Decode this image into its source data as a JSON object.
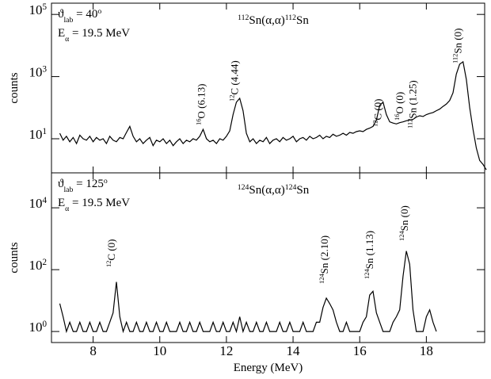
{
  "chart_data": [
    {
      "type": "line",
      "title": [
        {
          "text": "112",
          "pos": "sup"
        },
        {
          "text": "Sn(α,α)"
        },
        {
          "text": "112",
          "pos": "sup"
        },
        {
          "text": "Sn"
        }
      ],
      "title_color": "#2222dd",
      "conditions": [
        [
          {
            "text": "ϑ"
          },
          {
            "text": "lab",
            "pos": "sub"
          },
          {
            "text": " = 40"
          },
          {
            "text": "o",
            "pos": "sup"
          }
        ],
        [
          {
            "text": "E"
          },
          {
            "text": "α",
            "pos": "sub"
          },
          {
            "text": " = 19.5 MeV"
          }
        ]
      ],
      "ylabel": "counts",
      "log_y": true,
      "xlim": [
        6.75,
        19.75
      ],
      "xticks": [
        8,
        10,
        12,
        14,
        16,
        18
      ],
      "ylim": [
        0.8,
        230000
      ],
      "yticks": [
        {
          "value": 10,
          "label": [
            {
              "text": "10"
            },
            {
              "text": "1",
              "pos": "sup"
            }
          ]
        },
        {
          "value": 1000,
          "label": [
            {
              "text": "10"
            },
            {
              "text": "3",
              "pos": "sup"
            }
          ]
        },
        {
          "value": 100000,
          "label": [
            {
              "text": "10"
            },
            {
              "text": "5",
              "pos": "sup"
            }
          ]
        }
      ],
      "annotations": [
        {
          "text": [
            {
              "text": "16",
              "pos": "sup"
            },
            {
              "text": "O (6.13)"
            }
          ],
          "color": "#000000"
        },
        {
          "text": [
            {
              "text": "12",
              "pos": "sup"
            },
            {
              "text": "C (4.44)"
            }
          ],
          "color": "#000000"
        },
        {
          "text": [
            {
              "text": "12",
              "pos": "sup"
            },
            {
              "text": "C (0)"
            }
          ],
          "color": "#000000"
        },
        {
          "text": [
            {
              "text": "16",
              "pos": "sup"
            },
            {
              "text": "O (0)"
            }
          ],
          "color": "#000000"
        },
        {
          "text": [
            {
              "text": "112",
              "pos": "sup"
            },
            {
              "text": "Sn (1.25)"
            }
          ],
          "color": "#000000"
        },
        {
          "text": [
            {
              "text": "112",
              "pos": "sup"
            },
            {
              "text": "Sn (0)"
            }
          ],
          "color": "#2222dd"
        }
      ],
      "x": [
        7.0,
        7.1,
        7.2,
        7.3,
        7.4,
        7.5,
        7.6,
        7.7,
        7.8,
        7.9,
        8.0,
        8.1,
        8.2,
        8.3,
        8.4,
        8.5,
        8.6,
        8.7,
        8.8,
        8.9,
        9.0,
        9.1,
        9.2,
        9.3,
        9.4,
        9.5,
        9.6,
        9.7,
        9.8,
        9.9,
        10.0,
        10.1,
        10.2,
        10.3,
        10.4,
        10.5,
        10.6,
        10.7,
        10.8,
        10.9,
        11.0,
        11.1,
        11.2,
        11.3,
        11.4,
        11.5,
        11.6,
        11.7,
        11.8,
        11.9,
        12.0,
        12.1,
        12.2,
        12.3,
        12.4,
        12.5,
        12.6,
        12.7,
        12.8,
        12.9,
        13.0,
        13.1,
        13.2,
        13.3,
        13.4,
        13.5,
        13.6,
        13.7,
        13.8,
        13.9,
        14.0,
        14.1,
        14.2,
        14.3,
        14.4,
        14.5,
        14.6,
        14.7,
        14.8,
        14.9,
        15.0,
        15.1,
        15.2,
        15.3,
        15.4,
        15.5,
        15.6,
        15.7,
        15.8,
        15.9,
        16.0,
        16.1,
        16.2,
        16.3,
        16.4,
        16.5,
        16.6,
        16.7,
        16.8,
        16.9,
        17.0,
        17.1,
        17.2,
        17.3,
        17.4,
        17.5,
        17.6,
        17.7,
        17.8,
        17.9,
        18.0,
        18.1,
        18.2,
        18.3,
        18.4,
        18.5,
        18.6,
        18.7,
        18.8,
        18.9,
        19.0,
        19.1,
        19.2,
        19.3,
        19.4,
        19.5,
        19.6,
        19.7,
        19.8
      ],
      "series": [
        {
          "color": "#000000",
          "values": [
            15,
            9,
            12,
            8,
            11,
            7,
            13,
            10,
            9,
            12,
            8,
            11,
            9,
            10,
            7,
            12,
            9,
            8,
            11,
            10,
            16,
            25,
            12,
            8,
            10,
            7,
            9,
            11,
            6,
            9,
            8,
            10,
            7,
            9,
            6,
            8,
            10,
            7,
            9,
            8,
            10,
            9,
            12,
            20,
            10,
            8,
            9,
            7,
            10,
            9,
            12,
            18,
            60,
            150,
            200,
            80,
            15,
            8,
            10,
            7,
            9,
            8,
            11,
            7,
            9,
            10,
            8,
            11,
            9,
            10,
            12,
            8,
            10,
            11,
            9,
            12,
            10,
            11,
            13,
            10,
            12,
            11,
            14,
            12,
            13,
            15,
            13,
            16,
            15,
            17,
            18,
            17,
            20,
            22,
            25,
            40,
            120,
            150,
            60,
            35,
            32,
            30,
            33,
            35,
            38,
            40,
            42,
            50,
            55,
            52,
            60,
            65,
            70,
            80,
            90,
            110,
            130,
            170,
            300,
            1200,
            2500,
            3000,
            800,
            100,
            20,
            5,
            2,
            1.5,
            1
          ]
        }
      ]
    },
    {
      "type": "line",
      "title": [
        {
          "text": "124",
          "pos": "sup"
        },
        {
          "text": "Sn(α,α)"
        },
        {
          "text": "124",
          "pos": "sup"
        },
        {
          "text": "Sn"
        }
      ],
      "title_color": "#2222dd",
      "conditions": [
        [
          {
            "text": "ϑ"
          },
          {
            "text": "lab",
            "pos": "sub"
          },
          {
            "text": " = 125"
          },
          {
            "text": "o",
            "pos": "sup"
          }
        ],
        [
          {
            "text": "E"
          },
          {
            "text": "α",
            "pos": "sub"
          },
          {
            "text": " = 19.5 MeV"
          }
        ]
      ],
      "ylabel": "counts",
      "xlabel": "Energy (MeV)",
      "log_y": true,
      "xlim": [
        6.75,
        19.75
      ],
      "xticks": [
        8,
        10,
        12,
        14,
        16,
        18
      ],
      "ylim": [
        0.44,
        135000
      ],
      "yticks": [
        {
          "value": 1,
          "label": [
            {
              "text": "10"
            },
            {
              "text": "0",
              "pos": "sup"
            }
          ]
        },
        {
          "value": 100,
          "label": [
            {
              "text": "10"
            },
            {
              "text": "2",
              "pos": "sup"
            }
          ]
        },
        {
          "value": 10000,
          "label": [
            {
              "text": "10"
            },
            {
              "text": "4",
              "pos": "sup"
            }
          ]
        }
      ],
      "annotations": [
        {
          "text": [
            {
              "text": "12",
              "pos": "sup"
            },
            {
              "text": "C (0)"
            }
          ],
          "color": "#000000"
        },
        {
          "text": [
            {
              "text": "124",
              "pos": "sup"
            },
            {
              "text": "Sn (2.10)"
            }
          ],
          "color": "#000000"
        },
        {
          "text": [
            {
              "text": "124",
              "pos": "sup"
            },
            {
              "text": "Sn (1.13)"
            }
          ],
          "color": "#000000"
        },
        {
          "text": [
            {
              "text": "124",
              "pos": "sup"
            },
            {
              "text": "Sn (0)"
            }
          ],
          "color": "#2222dd"
        }
      ],
      "x": [
        7.0,
        7.1,
        7.2,
        7.3,
        7.4,
        7.5,
        7.6,
        7.7,
        7.8,
        7.9,
        8.0,
        8.1,
        8.2,
        8.3,
        8.4,
        8.5,
        8.6,
        8.7,
        8.8,
        8.9,
        9.0,
        9.1,
        9.2,
        9.3,
        9.4,
        9.5,
        9.6,
        9.7,
        9.8,
        9.9,
        10.0,
        10.1,
        10.2,
        10.3,
        10.4,
        10.5,
        10.6,
        10.7,
        10.8,
        10.9,
        11.0,
        11.1,
        11.2,
        11.3,
        11.4,
        11.5,
        11.6,
        11.7,
        11.8,
        11.9,
        12.0,
        12.1,
        12.2,
        12.3,
        12.4,
        12.5,
        12.6,
        12.7,
        12.8,
        12.9,
        13.0,
        13.1,
        13.2,
        13.3,
        13.4,
        13.5,
        13.6,
        13.7,
        13.8,
        13.9,
        14.0,
        14.1,
        14.2,
        14.3,
        14.4,
        14.5,
        14.6,
        14.7,
        14.8,
        14.9,
        15.0,
        15.1,
        15.2,
        15.3,
        15.4,
        15.5,
        15.6,
        15.7,
        15.8,
        15.9,
        16.0,
        16.1,
        16.2,
        16.3,
        16.4,
        16.5,
        16.6,
        16.7,
        16.8,
        16.9,
        17.0,
        17.1,
        17.2,
        17.3,
        17.4,
        17.5,
        17.6,
        17.7,
        17.8,
        17.9,
        18.0,
        18.1,
        18.2,
        18.3
      ],
      "series": [
        {
          "color": "#000000",
          "values": [
            8,
            3,
            1,
            2,
            1,
            1,
            2,
            1,
            1,
            2,
            1,
            1,
            2,
            1,
            1,
            2,
            4,
            40,
            3,
            1,
            2,
            1,
            1,
            2,
            1,
            1,
            2,
            1,
            1,
            2,
            1,
            1,
            2,
            1,
            1,
            1,
            2,
            1,
            1,
            2,
            1,
            1,
            2,
            1,
            1,
            1,
            2,
            1,
            1,
            2,
            1,
            1,
            2,
            1,
            3,
            1,
            2,
            1,
            1,
            2,
            1,
            1,
            2,
            1,
            1,
            1,
            2,
            1,
            1,
            2,
            1,
            1,
            1,
            2,
            1,
            1,
            1,
            2,
            2,
            6,
            12,
            8,
            5,
            2,
            1,
            1,
            2,
            1,
            1,
            1,
            1,
            2,
            3,
            15,
            20,
            4,
            2,
            1,
            1,
            1,
            2,
            3,
            5,
            60,
            400,
            150,
            5,
            1,
            1,
            1,
            3,
            5,
            2,
            1
          ]
        }
      ]
    }
  ]
}
